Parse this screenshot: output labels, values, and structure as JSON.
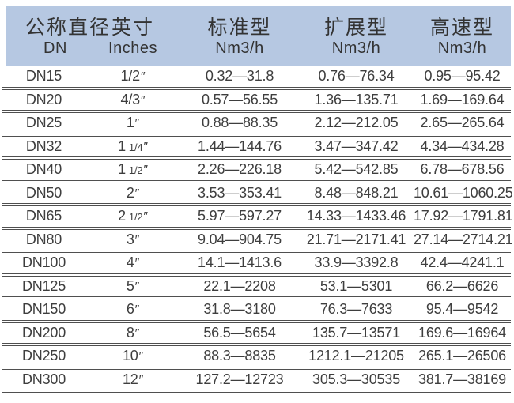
{
  "chart_data": {
    "type": "table",
    "inch_mark": "″",
    "colors": {
      "header_bg": "#b6c8e2",
      "header_text": "#333333",
      "row_text": "#3e3e3e",
      "rule": "#4f4f4f",
      "background": "#ffffff"
    },
    "header": {
      "columns": [
        {
          "title": "公称直径",
          "subtitle": "DN"
        },
        {
          "title": "英寸",
          "subtitle": "Inches"
        },
        {
          "title": "标准型",
          "subtitle": "Nm3/h"
        },
        {
          "title": "扩展型",
          "subtitle": "Nm3/h"
        },
        {
          "title": "高速型",
          "subtitle": "Nm3/h"
        }
      ]
    },
    "rows": [
      {
        "dn": "DN15",
        "inches_main": "1/2",
        "inches_frac": "",
        "standard": "0.32—31.8",
        "extended": "0.76—76.34",
        "high_speed": "0.95—95.42"
      },
      {
        "dn": "DN20",
        "inches_main": "4/3",
        "inches_frac": "",
        "standard": "0.57—56.55",
        "extended": "1.36—135.71",
        "high_speed": "1.69—169.64"
      },
      {
        "dn": "DN25",
        "inches_main": "1",
        "inches_frac": "",
        "standard": "0.88—88.35",
        "extended": "2.12—212.05",
        "high_speed": "2.65—265.64"
      },
      {
        "dn": "DN32",
        "inches_main": "1",
        "inches_frac": "1/4",
        "standard": "1.44—144.76",
        "extended": "3.47—347.42",
        "high_speed": "4.34—434.28"
      },
      {
        "dn": "DN40",
        "inches_main": "1",
        "inches_frac": "1/2",
        "standard": "2.26—226.18",
        "extended": "5.42—542.85",
        "high_speed": "6.78—678.56"
      },
      {
        "dn": "DN50",
        "inches_main": "2",
        "inches_frac": "",
        "standard": "3.53—353.41",
        "extended": "8.48—848.21",
        "high_speed": "10.61—1060.25"
      },
      {
        "dn": "DN65",
        "inches_main": "2",
        "inches_frac": "1/2",
        "standard": "5.97—597.27",
        "extended": "14.33—1433.46",
        "high_speed": "17.92—1791.81"
      },
      {
        "dn": "DN80",
        "inches_main": "3",
        "inches_frac": "",
        "standard": "9.04—904.75",
        "extended": "21.71—2171.41",
        "high_speed": "27.14—2714.21"
      },
      {
        "dn": "DN100",
        "inches_main": "4",
        "inches_frac": "",
        "standard": "14.1—1413.6",
        "extended": "33.9—3392.8",
        "high_speed": "42.4—4241.1"
      },
      {
        "dn": "DN125",
        "inches_main": "5",
        "inches_frac": "",
        "standard": "22.1—2208",
        "extended": "53.1—5301",
        "high_speed": "66.2—6626"
      },
      {
        "dn": "DN150",
        "inches_main": "6",
        "inches_frac": "",
        "standard": "31.8—3180",
        "extended": "76.3—7633",
        "high_speed": "95.4—9542"
      },
      {
        "dn": "DN200",
        "inches_main": "8",
        "inches_frac": "",
        "standard": "56.5—5654",
        "extended": "135.7—13571",
        "high_speed": "169.6—16964"
      },
      {
        "dn": "DN250",
        "inches_main": "10",
        "inches_frac": "",
        "standard": "88.3—8835",
        "extended": "1212.1—21205",
        "high_speed": "265.1—26506"
      },
      {
        "dn": "DN300",
        "inches_main": "12",
        "inches_frac": "",
        "standard": "127.2—12723",
        "extended": "305.3—30535",
        "high_speed": "381.7—38169"
      }
    ]
  }
}
